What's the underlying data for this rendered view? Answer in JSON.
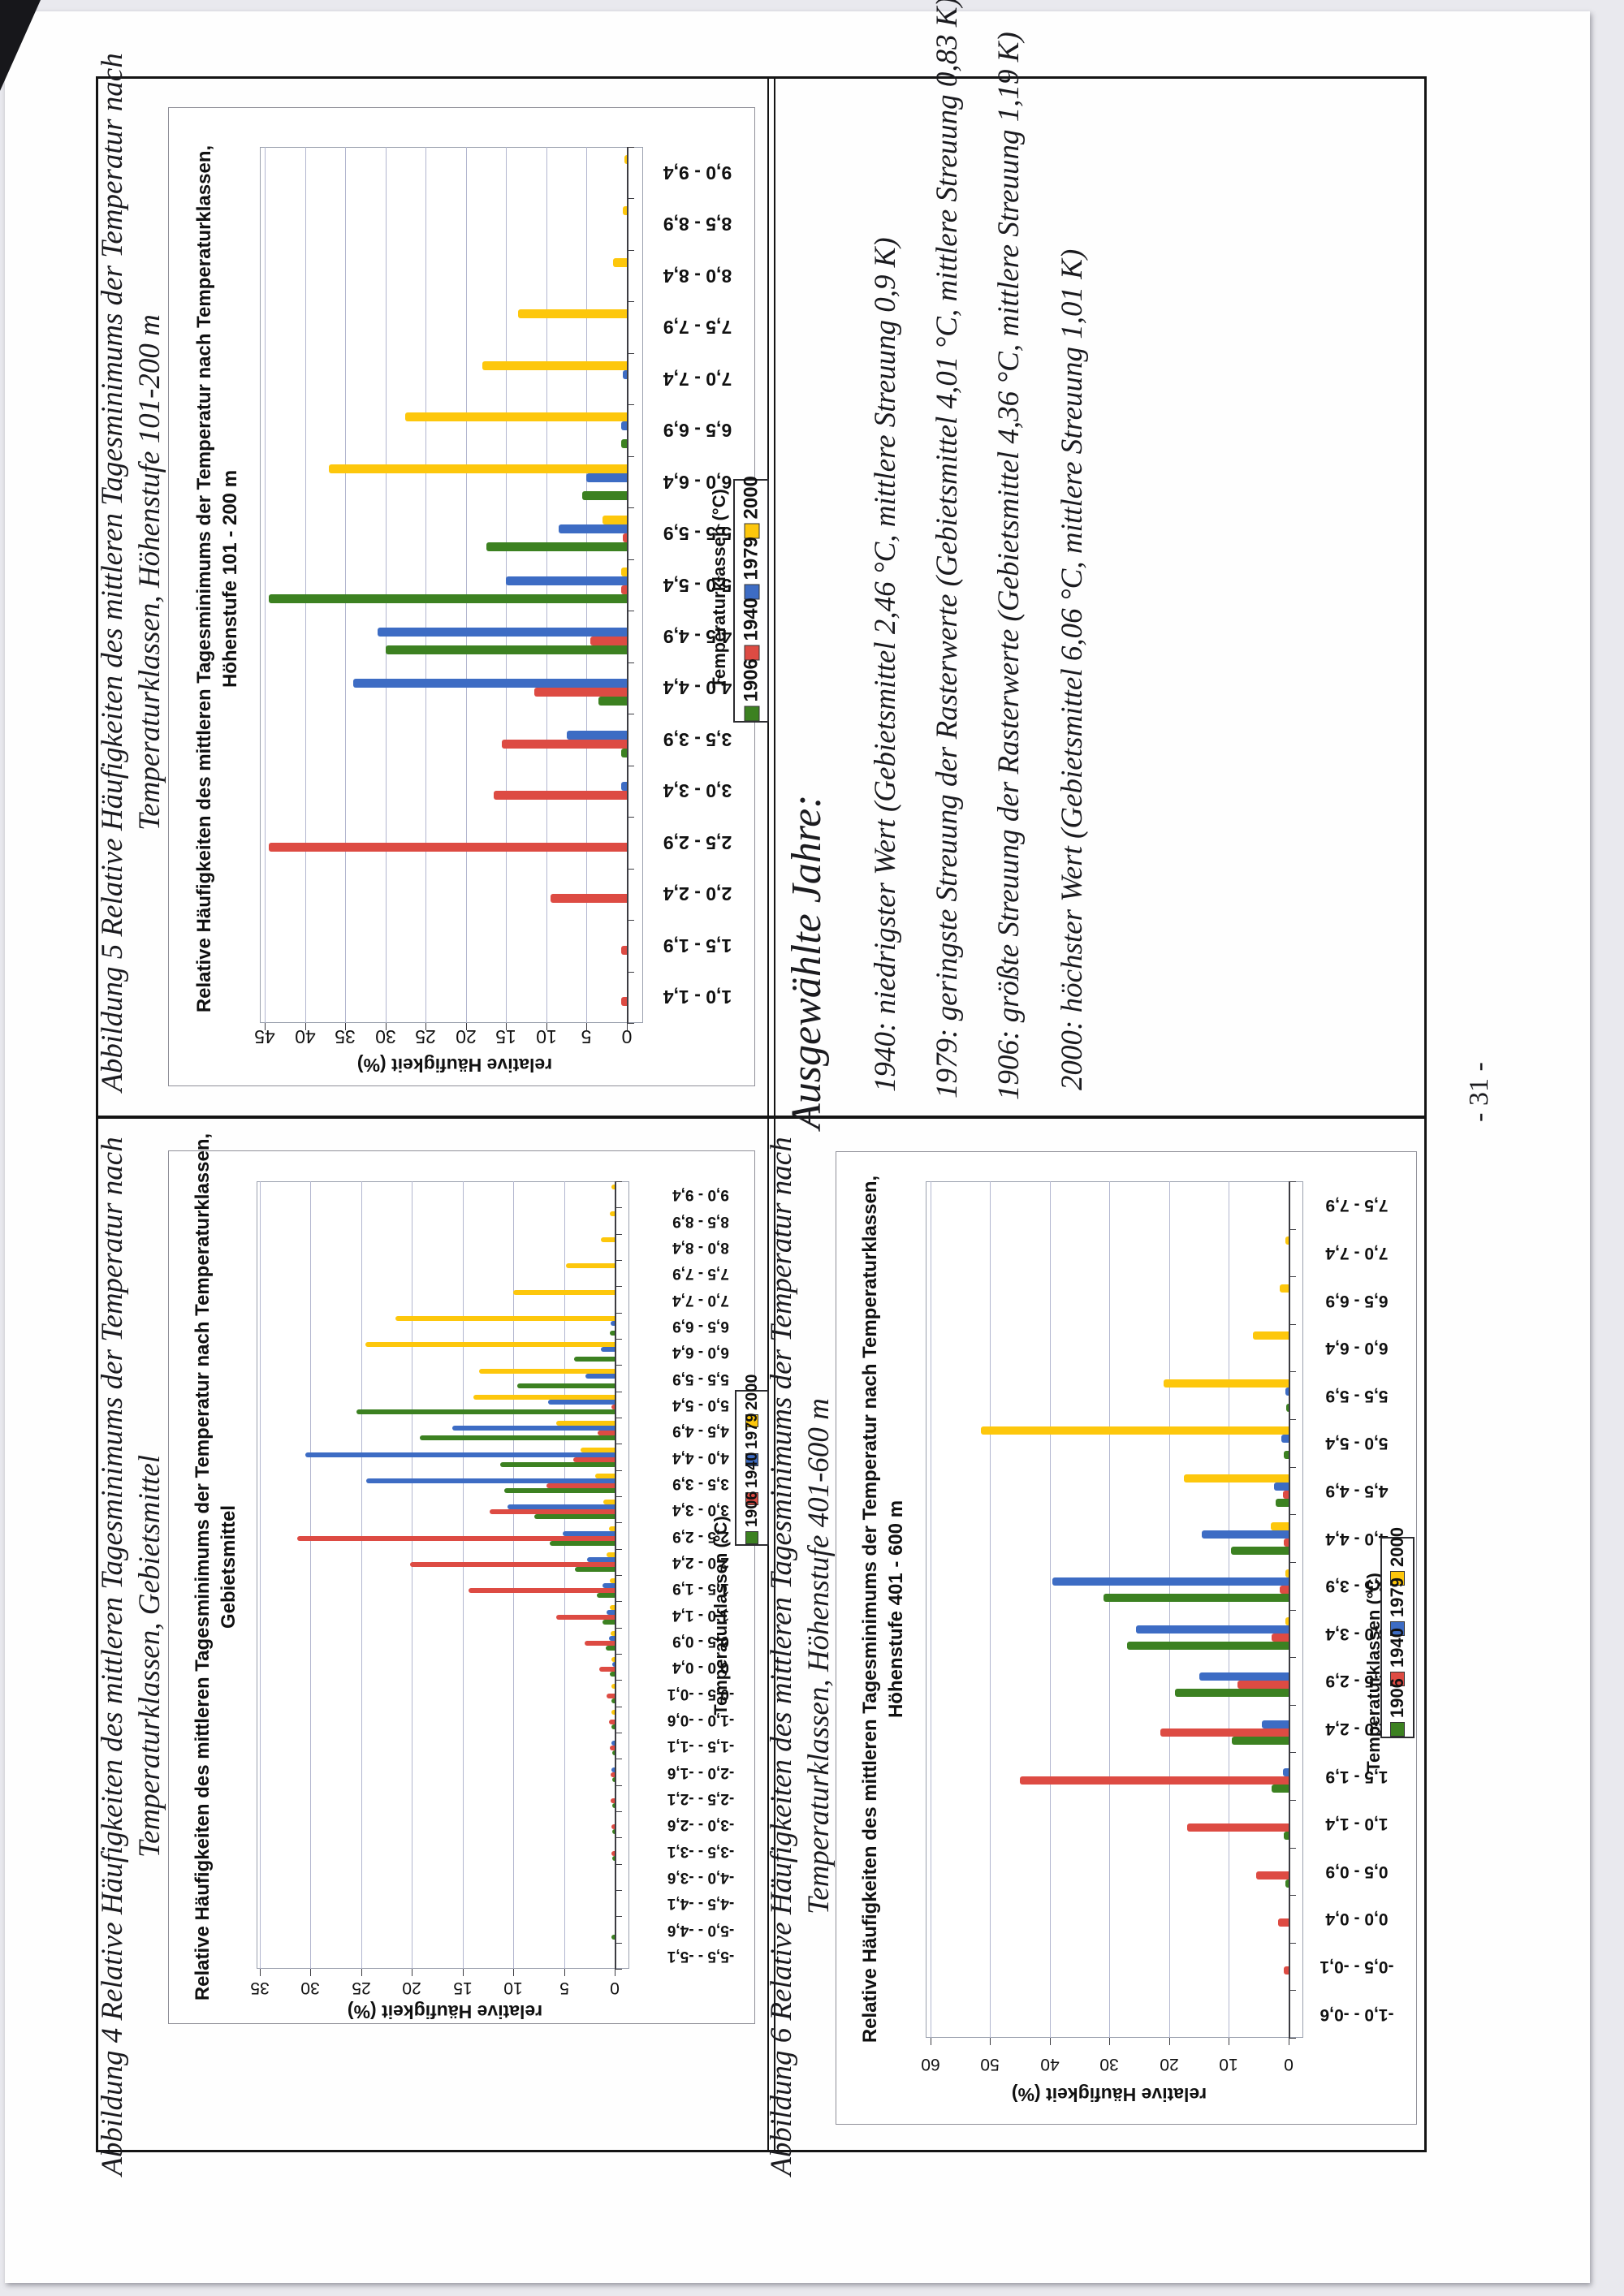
{
  "page": {
    "number_label": "- 31 -"
  },
  "shared": {
    "value_axis_title": "relative Häufigkeit (%)",
    "category_axis_title": "Temperaturklassen (°C)",
    "legend_years": [
      "1906",
      "1940",
      "1979",
      "2000"
    ],
    "series_colors": {
      "1906": "#3C8121",
      "1940": "#DD4B43",
      "1979": "#3D6CC4",
      "2000": "#FDC70C"
    }
  },
  "text_block": {
    "heading": "Ausgewählte Jahre:",
    "lines": [
      "1940: niedrigster Wert (Gebietsmittel 2,46 °C, mittlere Streuung 0,9 K)",
      "1979: geringste Streuung der Rasterwerte (Gebietsmittel 4,01 °C, mittlere Streuung 0,83 K)",
      "1906: größte Streuung der Rasterwerte (Gebietsmittel 4,36 °C, mittlere Streuung 1,19 K)",
      "2000: höchster Wert (Gebietsmittel 6,06 °C, mittlere Streuung 1,01 K)"
    ]
  },
  "chart_data": [
    {
      "id": "abbildung4",
      "type": "bar",
      "figure_caption": [
        "Abbildung 4 Relative Häufigkeiten des mittleren Tagesminimums der Temperatur nach",
        "Temperaturklassen, Gebietsmittel"
      ],
      "title": "Relative Häufigkeiten des mittleren Tagesminimums der Temperatur nach Temperaturklassen,",
      "subtitle": "Gebietsmittel",
      "xlabel": "Temperaturklassen (°C)",
      "ylabel": "relative Häufigkeit (%)",
      "ylim": [
        0,
        35
      ],
      "ytick_step": 5,
      "grid": true,
      "legend": [
        "1906",
        "1940",
        "1979",
        "2000"
      ],
      "categories": [
        "-5,5 - -5,1",
        "-5,0 - -4,6",
        "-4,5 - -4,1",
        "-4,0 - -3,6",
        "-3,5 - -3,1",
        "-3,0 - -2,6",
        "-2,5 - -2,1",
        "-2,0 - -1,6",
        "-1,5 - -1,1",
        "-1,0 - -0,6",
        "-0,5 - -0,1",
        "0,0 - 0,4",
        "0,5 - 0,9",
        "1,0 - 1,4",
        "1,5 - 1,9",
        "2,0 - 2,4",
        "2,5 - 2,9",
        "3,0 - 3,4",
        "3,5 - 3,9",
        "4,0 - 4,4",
        "4,5 - 4,9",
        "5,0 - 5,4",
        "5,5 - 5,9",
        "6,0 - 6,4",
        "6,5 - 6,9",
        "7,0 - 7,4",
        "7,5 - 7,9",
        "8,0 - 8,4",
        "8,5 - 8,9",
        "9,0 - 9,4"
      ],
      "series": [
        {
          "name": "1906",
          "values": [
            0,
            0.3,
            0,
            0,
            0.1,
            0.1,
            0.2,
            0.2,
            0.2,
            0.3,
            0.3,
            0.5,
            0.9,
            1.2,
            1.8,
            3.9,
            6.4,
            7.9,
            10.9,
            11.3,
            19.2,
            25.5,
            9.6,
            4.0,
            0.5,
            0,
            0,
            0,
            0,
            0
          ]
        },
        {
          "name": "1940",
          "values": [
            0,
            0,
            0,
            0,
            0.3,
            0.3,
            0.4,
            0.4,
            0.5,
            0.6,
            0.8,
            1.5,
            3.0,
            5.8,
            14.4,
            20.2,
            31.3,
            12.3,
            6.7,
            4.1,
            1.7,
            0.3,
            0,
            0,
            0,
            0,
            0,
            0,
            0,
            0
          ]
        },
        {
          "name": "1979",
          "values": [
            0,
            0,
            0,
            0,
            0,
            0,
            0,
            0.3,
            0.3,
            0,
            0,
            0.2,
            0.6,
            0.8,
            1.2,
            2.7,
            5.1,
            10.6,
            24.5,
            30.5,
            16.0,
            6.6,
            2.9,
            1.4,
            0.4,
            0,
            0,
            0,
            0,
            0
          ]
        },
        {
          "name": "2000",
          "values": [
            0,
            0,
            0,
            0,
            0,
            0,
            0,
            0,
            0,
            0.3,
            0.3,
            0.3,
            0.4,
            0.5,
            0.5,
            0.8,
            0.6,
            1.1,
            1.9,
            3.4,
            5.8,
            13.9,
            13.4,
            24.6,
            21.6,
            10.0,
            4.8,
            1.4,
            0.5,
            0.3
          ]
        }
      ]
    },
    {
      "id": "abbildung5",
      "type": "bar",
      "figure_caption": [
        "Abbildung 5 Relative Häufigkeiten des mittleren Tagesminimums der Temperatur nach",
        "Temperaturklassen, Höhenstufe 101-200 m"
      ],
      "title": "Relative Häufigkeiten des mittleren Tagesminimums der Temperatur nach Temperaturklassen,",
      "subtitle": "Höhenstufe 101 - 200 m",
      "xlabel": "Temperaturklassen (°C)",
      "ylabel": "relative Häufigkeit (%)",
      "ylim": [
        0,
        45
      ],
      "ytick_step": 5,
      "grid": true,
      "legend": [
        "1906",
        "1940",
        "1979",
        "2000"
      ],
      "categories": [
        "1,0 - 1,4",
        "1,5 - 1,9",
        "2,0 - 2,4",
        "2,5 - 2,9",
        "3,0 - 3,4",
        "3,5 - 3,9",
        "4,0 - 4,4",
        "4,5 - 4,9",
        "5,0 - 5,4",
        "5,5 - 5,9",
        "6,0 - 6,4",
        "6,5 - 6,9",
        "7,0 - 7,4",
        "7,5 - 7,9",
        "8,0 - 8,4",
        "8,5 - 8,9",
        "9,0 - 9,4"
      ],
      "series": [
        {
          "name": "1906",
          "values": [
            0,
            0,
            0,
            0,
            0,
            0.7,
            3.5,
            30.0,
            44.5,
            17.5,
            5.5,
            0.7,
            0,
            0,
            0,
            0,
            0
          ]
        },
        {
          "name": "1940",
          "values": [
            0.7,
            0.7,
            9.5,
            44.5,
            16.5,
            15.5,
            11.5,
            4.5,
            0.7,
            0.5,
            0,
            0,
            0,
            0,
            0,
            0,
            0
          ]
        },
        {
          "name": "1979",
          "values": [
            0,
            0,
            0,
            0,
            0.7,
            7.5,
            34.0,
            31.0,
            15.0,
            8.5,
            5.0,
            0.7,
            0.5,
            0,
            0,
            0,
            0
          ]
        },
        {
          "name": "2000",
          "values": [
            0,
            0,
            0,
            0,
            0,
            0,
            0,
            0,
            0.7,
            3.0,
            37.0,
            27.5,
            18.0,
            13.5,
            1.7,
            0.5,
            0.3
          ]
        }
      ]
    },
    {
      "id": "abbildung6",
      "type": "bar",
      "figure_caption": [
        "Abbildung 6 Relative Häufigkeiten des mittleren Tagesminimums der Temperatur nach",
        "Temperaturklassen, Höhenstufe 401-600 m"
      ],
      "title": "Relative Häufigkeiten des mittleren Tagesminimums der Temperatur nach Temperaturklassen,",
      "subtitle": "Höhenstufe 401 - 600 m",
      "xlabel": "Temperaturklassen (°C)",
      "ylabel": "relative Häufigkeit (%)",
      "ylim": [
        0,
        60
      ],
      "ytick_step": 10,
      "grid": true,
      "legend": [
        "1906",
        "1940",
        "1979",
        "2000"
      ],
      "categories": [
        "-1,0 - -0,6",
        "-0,5 - -0,1",
        "0,0 - 0,4",
        "0,5 - 0,9",
        "1,0 - 1,4",
        "1,5 - 1,9",
        "2,0 - 2,4",
        "2,5 - 2,9",
        "3,0 - 3,4",
        "3,5 - 3,9",
        "4,0 - 4,4",
        "4,5 - 4,9",
        "5,0 - 5,4",
        "5,5 - 5,9",
        "6,0 - 6,4",
        "6,5 - 6,9",
        "7,0 - 7,4",
        "7,5 - 7,9"
      ],
      "series": [
        {
          "name": "1906",
          "values": [
            0,
            0,
            0,
            0.5,
            0.8,
            2.8,
            9.5,
            19.0,
            27.0,
            31.0,
            9.7,
            2.2,
            0.8,
            0.4,
            0,
            0,
            0,
            0
          ]
        },
        {
          "name": "1940",
          "values": [
            0,
            0.8,
            1.8,
            5.5,
            17.0,
            45.0,
            21.5,
            8.5,
            2.8,
            1.5,
            0.8,
            1.0,
            0,
            0,
            0,
            0,
            0,
            0
          ]
        },
        {
          "name": "1979",
          "values": [
            0,
            0,
            0,
            0,
            0,
            1.0,
            4.5,
            15.0,
            25.5,
            39.5,
            14.5,
            2.5,
            1.2,
            0.5,
            0,
            0,
            0,
            0
          ]
        },
        {
          "name": "2000",
          "values": [
            0,
            0,
            0,
            0,
            0,
            0,
            0,
            0,
            0.5,
            0.6,
            3.0,
            17.5,
            51.5,
            21.0,
            6.0,
            1.5,
            0.5,
            0
          ]
        }
      ]
    }
  ]
}
